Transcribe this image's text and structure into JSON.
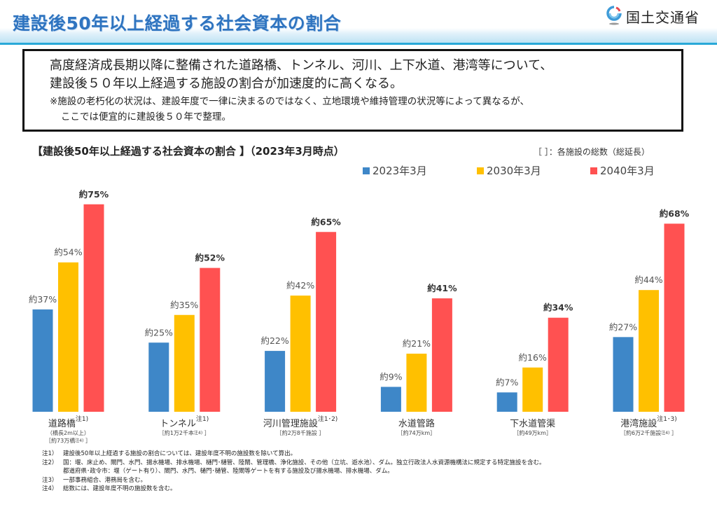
{
  "header": {
    "title": "建設後50年以上経過する社会資本の割合",
    "ministry": "国土交通省",
    "logo_icon": "mlit-logo-icon"
  },
  "summary": {
    "line1": "高度経済成長期以降に整備された道路橋、トンネル、河川、上下水道、港湾等について、",
    "line2": "建設後５０年以上経過する施設の割合が加速度的に高くなる。",
    "note1": "※施設の老朽化の状況は、建設年度で一律に決まるのではなく、立地環境や維持管理の状況等によって異なるが、",
    "note2": "ここでは便宜的に建設後５０年で整理。"
  },
  "chart_data": {
    "type": "bar",
    "title": "【建設後50年以上経過する社会資本の割合 】（2023年3月時点）",
    "total_note": "［ ］：各施設の総数（総延長）",
    "xlabel": "",
    "ylabel": "",
    "ylim": [
      0,
      100
    ],
    "grid": false,
    "legend_position": "top-right",
    "categories": [
      "道路橋",
      "トンネル",
      "河川管理施設",
      "水道管路",
      "下水道管渠",
      "港湾施設"
    ],
    "category_sup": [
      "注1)",
      "注1)",
      "注1･2)",
      "",
      "",
      "注1･3)"
    ],
    "category_sub": [
      [
        {
          "text": "（橋長2m以上）",
          "sup": ""
        },
        {
          "text": "［約73万橋",
          "sup": "注4)",
          "tail": " ］"
        }
      ],
      [
        {
          "text": "［約1万2千本",
          "sup": "注4)",
          "tail": " ］"
        }
      ],
      [
        {
          "text": "［約2万8千施設 ］",
          "sup": ""
        }
      ],
      [
        {
          "text": "［約74万km］",
          "sup": ""
        }
      ],
      [
        {
          "text": "［約49万km］",
          "sup": ""
        }
      ],
      [
        {
          "text": "［約6万2千施設",
          "sup": "注4)",
          "tail": " ］"
        }
      ]
    ],
    "series": [
      {
        "name": "2023年3月",
        "color": "#3e87c8",
        "values": [
          37,
          25,
          22,
          9,
          7,
          27
        ],
        "labels": [
          "約37%",
          "約25%",
          "約22%",
          "約9%",
          "約7%",
          "約27%"
        ],
        "bold": false
      },
      {
        "name": "2030年3月",
        "color": "#ffc000",
        "values": [
          54,
          35,
          42,
          21,
          16,
          44
        ],
        "labels": [
          "約54%",
          "約35%",
          "約42%",
          "約21%",
          "約16%",
          "約44%"
        ],
        "bold": false
      },
      {
        "name": "2040年3月",
        "color": "#ff5151",
        "values": [
          75,
          52,
          65,
          41,
          34,
          68
        ],
        "labels": [
          "約75%",
          "約52%",
          "約65%",
          "約41%",
          "約34%",
          "約68%"
        ],
        "bold": true
      }
    ]
  },
  "notes": [
    {
      "key": "注1）",
      "text": "建設後50年以上経過する施設の割合については、建設年度不明の施設数を除いて算出。"
    },
    {
      "key": "注2）",
      "text": "国：堰、床止め、閘門、水門、揚水機場、排水機場、樋門･樋管、陸閘、管理橋、浄化施設、その他（立坑、遊水池）、ダム。独立行政法人水資源機構法に規定する特定施設を含む。"
    },
    {
      "key": "",
      "text": "都道府県･政令市：堰（ゲート有り）、閘門、水門、樋門･樋管、陸閘等ゲートを有する施設及び揚水機場、排水機場、ダム。"
    },
    {
      "key": "注3）",
      "text": "一部事務組合、港務局を含む。"
    },
    {
      "key": "注4）",
      "text": "総数には、建設年度不明の施設数を含む。"
    }
  ]
}
